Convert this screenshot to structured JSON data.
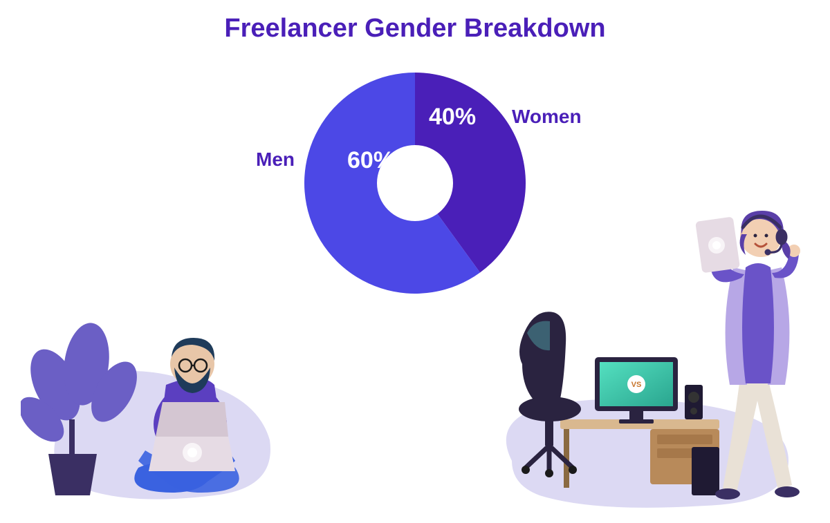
{
  "title": {
    "text": "Freelancer Gender Breakdown",
    "color": "#4a1fb8",
    "fontsize": 38
  },
  "chart": {
    "type": "donut",
    "outer_radius": 160,
    "inner_radius": 55,
    "center_hole_color": "#ffffff",
    "background_color": "#ffffff",
    "slices": [
      {
        "key": "women",
        "label": "Women",
        "value": 40,
        "percent_text": "40%",
        "color": "#4a1fb8"
      },
      {
        "key": "men",
        "label": "Men",
        "value": 60,
        "percent_text": "60%",
        "color": "#4c48e6"
      }
    ],
    "start_angle_deg": 0,
    "percent_label_fontsize": 34,
    "percent_label_color": "#ffffff",
    "side_label_fontsize": 28,
    "side_label_color": "#4a1fb8"
  },
  "illustrations": {
    "left": {
      "name": "man-with-laptop",
      "blob_color": "#dcd9f3",
      "plant_color": "#6b5fc5",
      "pot_color": "#3a2f63",
      "skin": "#e8c6a8",
      "beard": "#1f3b5a",
      "hair": "#1f3b5a",
      "glasses": "#1a1a1a",
      "shirt": "#5b3fc0",
      "pants": "#3a62e0",
      "laptop": "#e6dbe4",
      "laptop_glow": "#ffffff"
    },
    "right": {
      "name": "woman-with-tablet-and-desk",
      "blob_color": "#dcd9f3",
      "skin": "#f2cfb3",
      "hair": "#5a3fa8",
      "headset": "#3a2f63",
      "vest": "#b7a7e6",
      "shirt": "#6a53c8",
      "pants": "#e9e1d6",
      "shoes": "#3a2f63",
      "tablet": "#e6dbe4",
      "tablet_glow": "#ffffff",
      "desk_top": "#d9b88f",
      "desk_body": "#b88a5a",
      "monitor_frame": "#2a2340",
      "monitor_screen_a": "#54e0c0",
      "monitor_screen_b": "#2aa58f",
      "monitor_badge": "#ffffff",
      "monitor_badge_text": "VS",
      "speaker": "#1f1a33",
      "chair_body": "#2a2340",
      "chair_accent": "#5fd6d0",
      "pc_tower": "#1f1a33"
    }
  }
}
